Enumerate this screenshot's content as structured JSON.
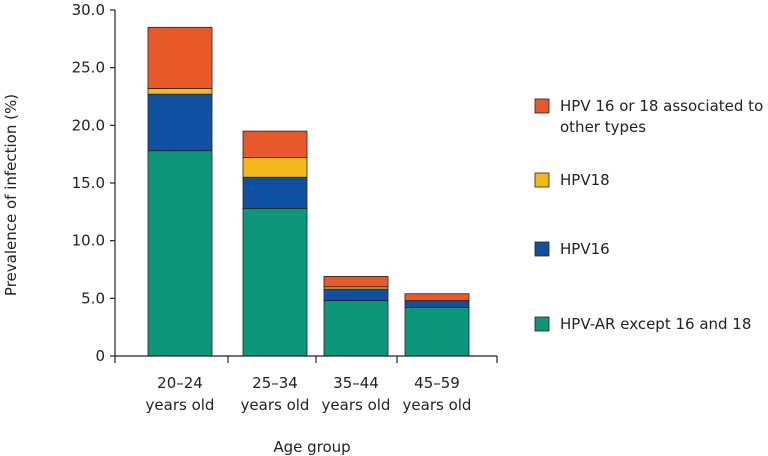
{
  "chart_data": {
    "type": "bar",
    "stacked": true,
    "title": "",
    "xlabel": "Age group",
    "ylabel": "Prevalence of infection (%)",
    "ylim": [
      0,
      30
    ],
    "yticks": [
      "0",
      "5.0",
      "10.0",
      "15.0",
      "20.0",
      "25.0",
      "30.0"
    ],
    "ytick_values": [
      0,
      5,
      10,
      15,
      20,
      25,
      30
    ],
    "categories": [
      [
        "20–24",
        "years old"
      ],
      [
        "25–34",
        "years old"
      ],
      [
        "35–44",
        "years old"
      ],
      [
        "45–59",
        "years old"
      ]
    ],
    "series": [
      {
        "name": "HPV-AR except 16 and 18",
        "color": "#0e967a",
        "values": [
          17.8,
          12.8,
          4.8,
          4.2
        ]
      },
      {
        "name": "HPV16",
        "color": "#1050a0",
        "values": [
          4.9,
          2.7,
          1.0,
          0.6
        ]
      },
      {
        "name": "HPV18",
        "color": "#f4b81c",
        "values": [
          0.5,
          1.7,
          0.2,
          0.0
        ]
      },
      {
        "name": "HPV 16 or 18 associated to other types",
        "color": "#e8582a",
        "values": [
          5.3,
          2.3,
          0.9,
          0.6
        ]
      }
    ],
    "legend": [
      {
        "lines": [
          "HPV 16 or 18 associated to",
          "other types"
        ],
        "color": "#e8582a"
      },
      {
        "lines": [
          "HPV18"
        ],
        "color": "#f4b81c"
      },
      {
        "lines": [
          "HPV16"
        ],
        "color": "#1050a0"
      },
      {
        "lines": [
          "HPV-AR except 16 and 18"
        ],
        "color": "#0e967a"
      }
    ],
    "legend_position": "right"
  }
}
